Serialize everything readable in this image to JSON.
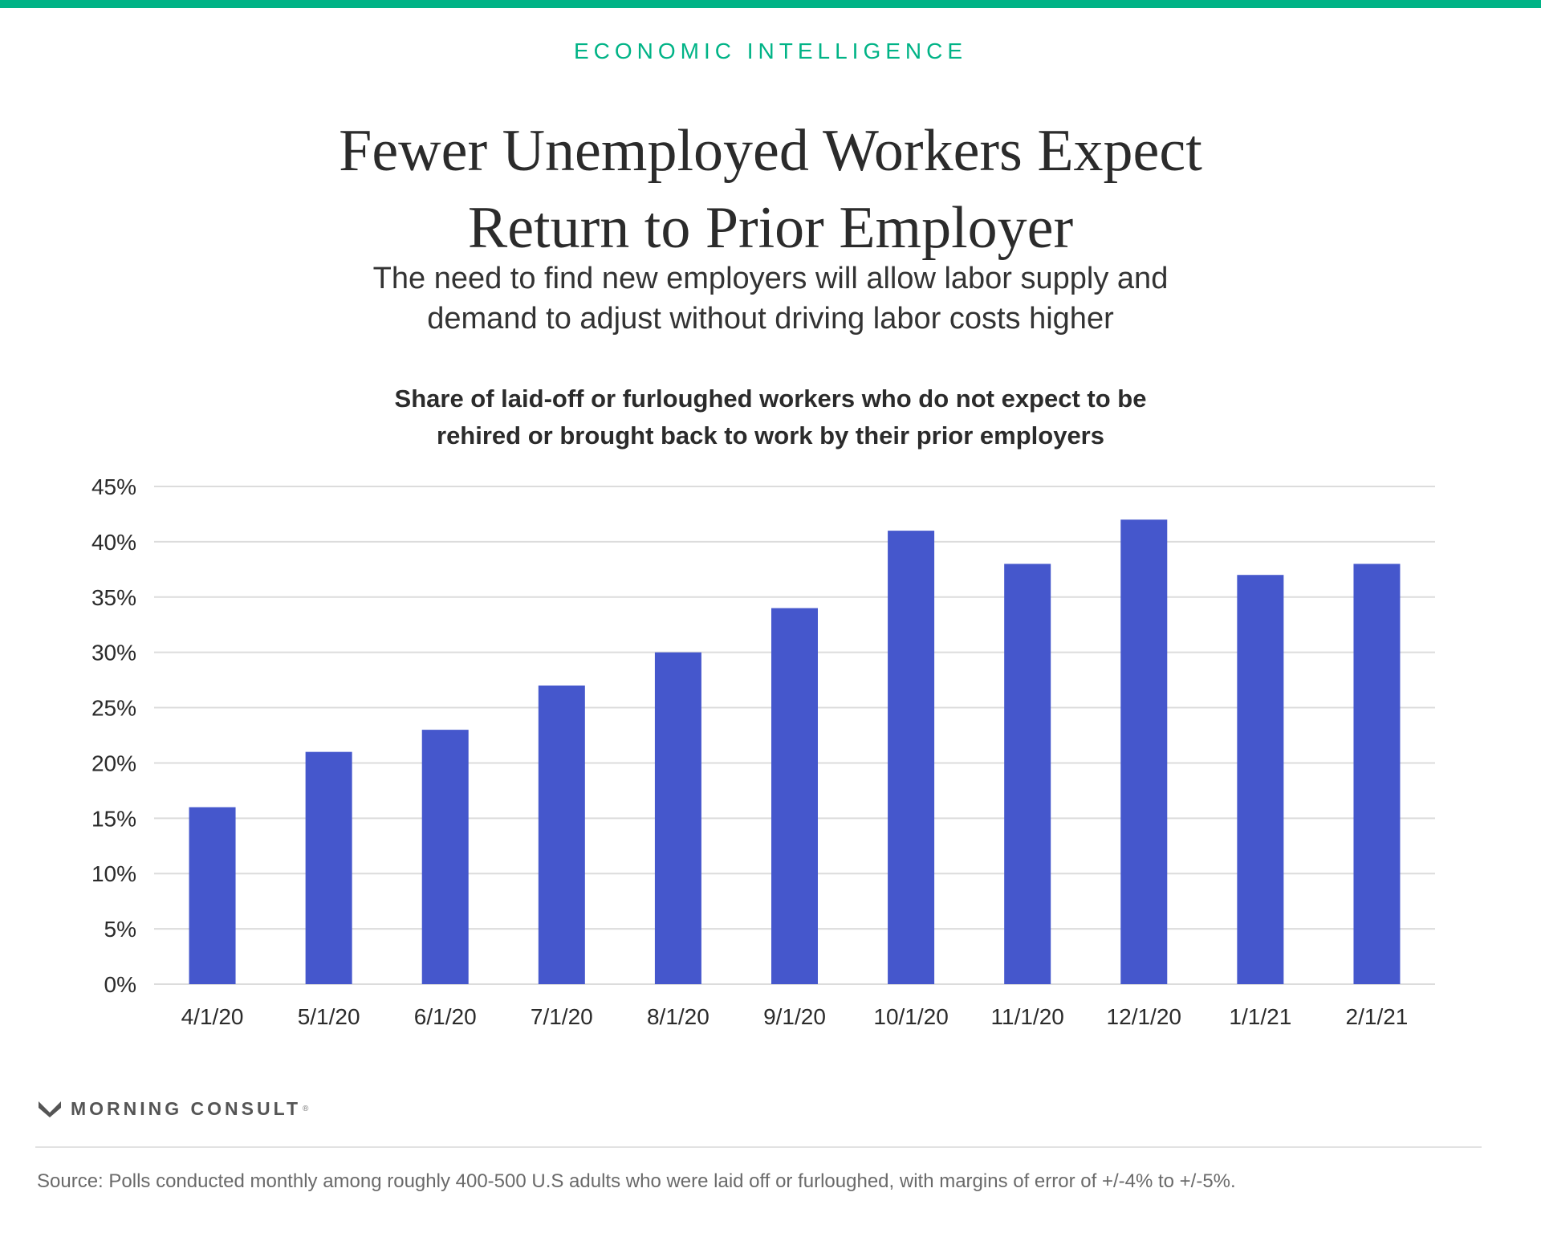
{
  "colors": {
    "accent": "#00b386",
    "bar": "#4557cc",
    "grid": "#dcdcdc",
    "axis_text": "#2b2b2b"
  },
  "header": {
    "section_label": "ECONOMIC INTELLIGENCE",
    "title_line1": "Fewer Unemployed Workers Expect",
    "title_line2": "Return to Prior Employer",
    "subtitle_line1": "The need to find new employers will allow labor supply and",
    "subtitle_line2": "demand to adjust without driving labor costs higher"
  },
  "chart_data": {
    "type": "bar",
    "title_line1": "Share of laid-off or furloughed workers who do not expect to be",
    "title_line2": "rehired or brought back to work by their prior employers",
    "categories": [
      "4/1/20",
      "5/1/20",
      "6/1/20",
      "7/1/20",
      "8/1/20",
      "9/1/20",
      "10/1/20",
      "11/1/20",
      "12/1/20",
      "1/1/21",
      "2/1/21"
    ],
    "values": [
      16,
      21,
      23,
      27,
      30,
      34,
      41,
      38,
      42,
      37,
      38
    ],
    "y_ticks": [
      "0%",
      "5%",
      "10%",
      "15%",
      "20%",
      "25%",
      "30%",
      "35%",
      "40%",
      "45%"
    ],
    "ylim": [
      0,
      45
    ],
    "y_tick_step": 5,
    "grid": true,
    "xlabel": "",
    "ylabel": ""
  },
  "footer": {
    "brand": "MORNING CONSULT",
    "brand_mark": "®",
    "source": "Source: Polls conducted monthly among roughly 400-500 U.S adults who were laid off or furloughed, with margins of error of +/-4% to +/-5%."
  }
}
